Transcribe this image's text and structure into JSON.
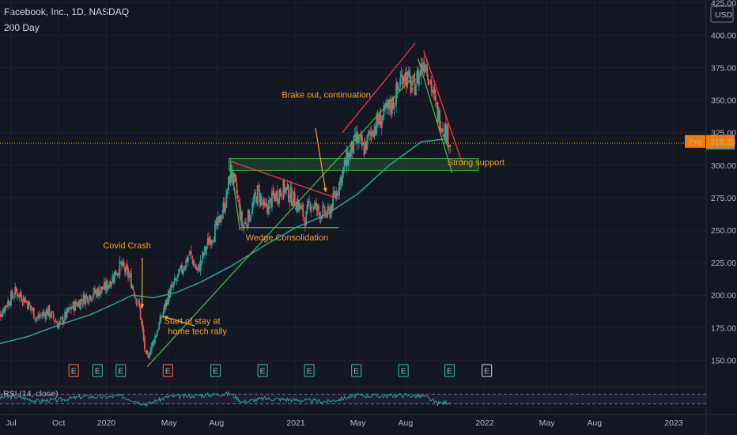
{
  "header": {
    "symbol": "Facebook, Inc., 1D, NASDAQ",
    "indicator": "200 Day"
  },
  "colors": {
    "background": "#131722",
    "up": "#26a69a",
    "down": "#ef5350",
    "ma": "#2a9d8f",
    "annotation": "#f7a125",
    "trend_red": "#f23645",
    "trend_green": "#4caf50",
    "support_box": "#3cb043"
  },
  "chart_data": {
    "type": "candlestick",
    "title": "Facebook, Inc., 1D, NASDAQ",
    "currency_label": "USD",
    "y_ticks": [
      150,
      175,
      200,
      225,
      250,
      275,
      300,
      325,
      350,
      375,
      400,
      425
    ],
    "y_tick_labels": [
      "150.00",
      "175.00",
      "200.00",
      "225.00",
      "250.00",
      "275.00",
      "300.00",
      "325.00",
      "350.00",
      "375.00",
      "400.00",
      "425.00"
    ],
    "ylim": [
      132,
      427
    ],
    "x_ticks": [
      "Jul",
      "Oct",
      "2020",
      "May",
      "Aug",
      "2021",
      "May",
      "Aug",
      "2022",
      "May",
      "Aug",
      "2023"
    ],
    "x_tick_dates": [
      "2019-07-01",
      "2019-10-01",
      "2020-01-01",
      "2020-05-01",
      "2020-08-01",
      "2021-01-01",
      "2021-05-01",
      "2021-08-01",
      "2022-01-01",
      "2022-05-01",
      "2022-08-01",
      "2023-01-01"
    ],
    "price_path": [
      [
        "2019-06-01",
        180
      ],
      [
        "2019-06-20",
        192
      ],
      [
        "2019-07-10",
        203
      ],
      [
        "2019-07-30",
        196
      ],
      [
        "2019-08-20",
        182
      ],
      [
        "2019-09-10",
        188
      ],
      [
        "2019-10-01",
        177
      ],
      [
        "2019-10-25",
        190
      ],
      [
        "2019-11-20",
        198
      ],
      [
        "2019-12-10",
        202
      ],
      [
        "2019-12-31",
        206
      ],
      [
        "2020-01-20",
        218
      ],
      [
        "2020-01-29",
        223
      ],
      [
        "2020-02-15",
        214
      ],
      [
        "2020-03-05",
        190
      ],
      [
        "2020-03-18",
        150
      ],
      [
        "2020-03-26",
        158
      ],
      [
        "2020-04-10",
        175
      ],
      [
        "2020-04-30",
        200
      ],
      [
        "2020-05-20",
        215
      ],
      [
        "2020-06-10",
        232
      ],
      [
        "2020-06-25",
        218
      ],
      [
        "2020-07-15",
        240
      ],
      [
        "2020-08-05",
        255
      ],
      [
        "2020-08-20",
        275
      ],
      [
        "2020-08-28",
        296
      ],
      [
        "2020-09-08",
        280
      ],
      [
        "2020-09-20",
        252
      ],
      [
        "2020-10-05",
        263
      ],
      [
        "2020-10-20",
        280
      ],
      [
        "2020-11-02",
        265
      ],
      [
        "2020-11-20",
        276
      ],
      [
        "2020-12-10",
        282
      ],
      [
        "2021-01-05",
        270
      ],
      [
        "2021-01-20",
        258
      ],
      [
        "2021-01-28",
        272
      ],
      [
        "2021-02-15",
        264
      ],
      [
        "2021-03-05",
        262
      ],
      [
        "2021-03-25",
        285
      ],
      [
        "2021-04-10",
        305
      ],
      [
        "2021-04-29",
        320
      ],
      [
        "2021-05-12",
        312
      ],
      [
        "2021-06-01",
        330
      ],
      [
        "2021-06-20",
        338
      ],
      [
        "2021-07-10",
        350
      ],
      [
        "2021-07-28",
        372
      ],
      [
        "2021-08-15",
        358
      ],
      [
        "2021-09-01",
        376
      ],
      [
        "2021-09-08",
        382
      ],
      [
        "2021-09-20",
        360
      ],
      [
        "2021-10-01",
        340
      ],
      [
        "2021-10-15",
        328
      ],
      [
        "2021-10-26",
        318
      ]
    ],
    "ma_200_path": [
      [
        "2019-06-01",
        162
      ],
      [
        "2019-08-01",
        168
      ],
      [
        "2019-10-01",
        177
      ],
      [
        "2019-12-01",
        185
      ],
      [
        "2020-01-15",
        193
      ],
      [
        "2020-02-20",
        200
      ],
      [
        "2020-04-01",
        198
      ],
      [
        "2020-05-15",
        202
      ],
      [
        "2020-07-01",
        210
      ],
      [
        "2020-09-01",
        223
      ],
      [
        "2020-11-01",
        238
      ],
      [
        "2021-01-01",
        252
      ],
      [
        "2021-03-01",
        262
      ],
      [
        "2021-05-01",
        278
      ],
      [
        "2021-07-01",
        300
      ],
      [
        "2021-09-01",
        318
      ],
      [
        "2021-10-15",
        320
      ]
    ],
    "last_price": 316.92,
    "last_price_label": "316.92",
    "premarket_label": "Pre",
    "premarket_price": 318.23,
    "premarket_price_label": "318.23",
    "earnings_markers": [
      {
        "date": "2019-10-30",
        "label": "E",
        "style": "red"
      },
      {
        "date": "2019-12-15",
        "label": "E",
        "style": "green"
      },
      {
        "date": "2020-01-29",
        "label": "E",
        "style": "green"
      },
      {
        "date": "2020-04-29",
        "label": "E",
        "style": "red"
      },
      {
        "date": "2020-07-30",
        "label": "E",
        "style": "green"
      },
      {
        "date": "2020-10-29",
        "label": "E",
        "style": "green"
      },
      {
        "date": "2021-01-27",
        "label": "E",
        "style": "green"
      },
      {
        "date": "2021-04-28",
        "label": "E",
        "style": "green"
      },
      {
        "date": "2021-07-28",
        "label": "E",
        "style": "green"
      },
      {
        "date": "2021-10-25",
        "label": "E",
        "style": "green"
      },
      {
        "date": "2022-01-05",
        "label": "E",
        "style": "future"
      }
    ],
    "annotations": [
      {
        "text": "Brake out, continuation",
        "date": "2021-03-01",
        "y": 352
      },
      {
        "text": "Strong support",
        "date": "2021-12-15",
        "y": 300
      },
      {
        "text": "Covid Crash",
        "date": "2020-02-10",
        "y": 236
      },
      {
        "text": "Wedge Consolidation",
        "date": "2020-12-15",
        "y": 242
      },
      {
        "text": "Start of stay at",
        "date": "2020-06-15",
        "y": 178
      },
      {
        "text": "home tech rally",
        "date": "2020-06-25",
        "y": 170
      }
    ],
    "support_zone": {
      "from": "2020-08-25",
      "to": "2021-12-20",
      "low": 296,
      "high": 305
    },
    "trendlines": [
      {
        "color": "red",
        "from": [
          "2020-08-28",
          303
        ],
        "to": [
          "2021-03-25",
          274
        ]
      },
      {
        "color": "green",
        "from": [
          "2020-08-28",
          303
        ],
        "to": [
          "2020-09-15",
          250
        ]
      },
      {
        "color": "green",
        "from": [
          "2020-09-15",
          252
        ],
        "to": [
          "2021-03-25",
          252
        ]
      },
      {
        "color": "green",
        "from": [
          "2020-03-20",
          145
        ],
        "to": [
          "2021-08-20",
          370
        ]
      },
      {
        "color": "red",
        "from": [
          "2021-04-01",
          325
        ],
        "to": [
          "2021-08-20",
          394
        ]
      },
      {
        "color": "red",
        "from": [
          "2021-09-05",
          388
        ],
        "to": [
          "2021-11-20",
          300
        ]
      },
      {
        "color": "green",
        "from": [
          "2021-08-25",
          382
        ],
        "to": [
          "2021-10-30",
          294
        ]
      }
    ],
    "rsi": {
      "label": "RSI (14, close)",
      "upper": 70,
      "lower": 30,
      "values": [
        [
          "2019-06-01",
          55
        ],
        [
          "2019-07-10",
          60
        ],
        [
          "2019-08-20",
          42
        ],
        [
          "2019-10-01",
          46
        ],
        [
          "2019-11-20",
          60
        ],
        [
          "2019-12-31",
          58
        ],
        [
          "2020-01-29",
          62
        ],
        [
          "2020-03-18",
          28
        ],
        [
          "2020-04-30",
          60
        ],
        [
          "2020-06-10",
          62
        ],
        [
          "2020-08-28",
          72
        ],
        [
          "2020-09-20",
          38
        ],
        [
          "2020-11-02",
          52
        ],
        [
          "2021-01-20",
          44
        ],
        [
          "2021-03-05",
          40
        ],
        [
          "2021-04-29",
          64
        ],
        [
          "2021-06-20",
          62
        ],
        [
          "2021-07-28",
          66
        ],
        [
          "2021-09-08",
          60
        ],
        [
          "2021-10-01",
          32
        ],
        [
          "2021-10-26",
          38
        ]
      ]
    }
  }
}
